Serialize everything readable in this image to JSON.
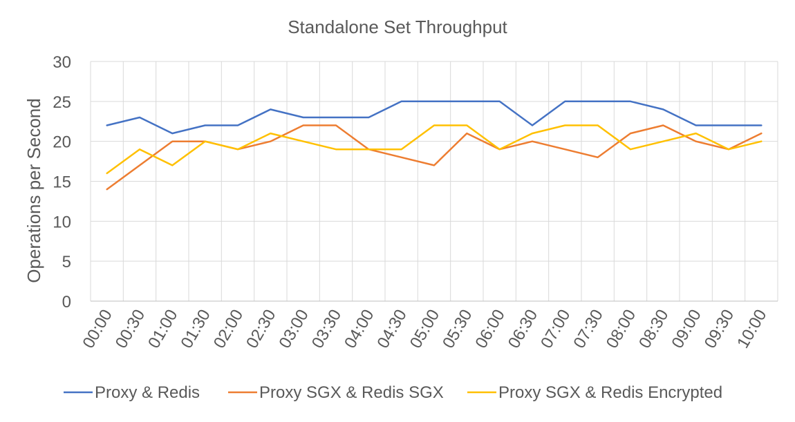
{
  "chart_data": {
    "type": "line",
    "title": "Standalone Set Throughput",
    "xlabel": "",
    "ylabel": "Operations per Second",
    "ylim": [
      0,
      30
    ],
    "yticks": [
      0,
      5,
      10,
      15,
      20,
      25,
      30
    ],
    "grid": true,
    "legend_position": "bottom",
    "categories": [
      "00:00",
      "00:30",
      "01:00",
      "01:30",
      "02:00",
      "02:30",
      "03:00",
      "03:30",
      "04:00",
      "04:30",
      "05:00",
      "05:30",
      "06:00",
      "06:30",
      "07:00",
      "07:30",
      "08:00",
      "08:30",
      "09:00",
      "09:30",
      "10:00"
    ],
    "series": [
      {
        "name": "Proxy & Redis",
        "color": "#4472C4",
        "values": [
          22,
          23,
          21,
          22,
          22,
          24,
          23,
          23,
          23,
          25,
          25,
          25,
          25,
          22,
          25,
          25,
          25,
          24,
          22,
          22,
          22
        ]
      },
      {
        "name": "Proxy SGX & Redis SGX",
        "color": "#ED7D31",
        "values": [
          14,
          17,
          20,
          20,
          19,
          20,
          22,
          22,
          19,
          18,
          17,
          21,
          19,
          20,
          19,
          18,
          21,
          22,
          20,
          19,
          21
        ]
      },
      {
        "name": "Proxy SGX & Redis Encrypted",
        "color": "#FFC000",
        "values": [
          16,
          19,
          17,
          20,
          19,
          21,
          20,
          19,
          19,
          19,
          22,
          22,
          19,
          21,
          22,
          22,
          19,
          20,
          21,
          19,
          20
        ]
      }
    ]
  }
}
